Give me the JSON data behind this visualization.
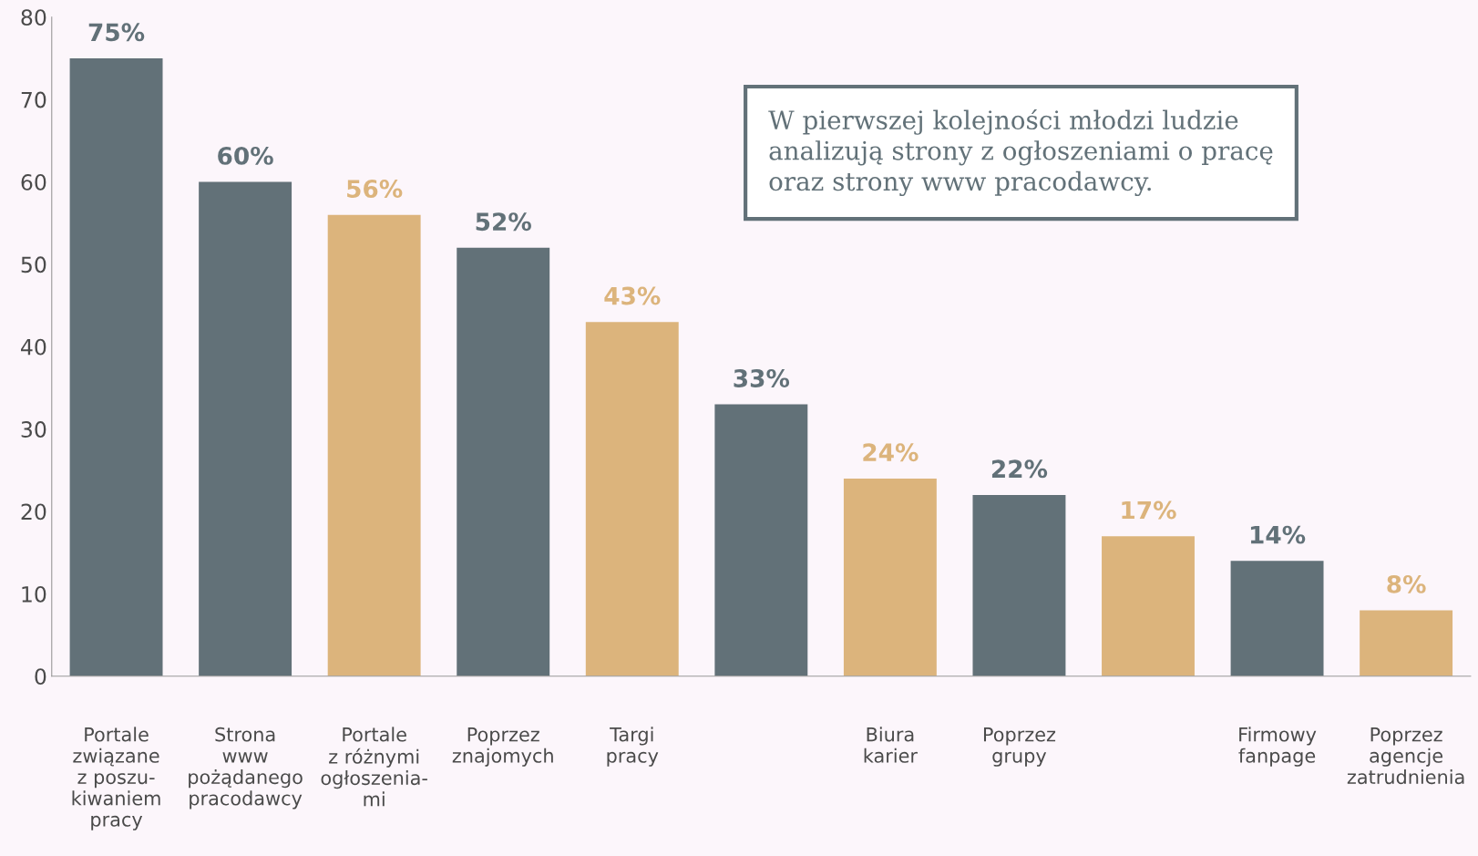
{
  "chart_data": {
    "type": "bar",
    "categories": [
      "Portale\nzwiązane\nz poszu-\nkiwaniem\npracy",
      "Strona\nwww\npożądanego\npracodawcy",
      "Portale\nz różnymi\nogłoszenia-\nmi",
      "Poprzez\nznajomych",
      "Targi\npracy",
      null,
      "Biura\nkarier",
      "Poprzez\ngrupy",
      null,
      "Firmowy\nfanpage",
      "Poprzez\nagencje\nzatrudnienia"
    ],
    "values": [
      75,
      60,
      56,
      52,
      43,
      33,
      24,
      22,
      17,
      14,
      8
    ],
    "colors": [
      "#627178",
      "#627178",
      "#dcb47c",
      "#627178",
      "#dcb47c",
      "#627178",
      "#dcb47c",
      "#627178",
      "#dcb47c",
      "#627178",
      "#dcb47c"
    ],
    "value_labels": [
      "75%",
      "60%",
      "56%",
      "52%",
      "43%",
      "33%",
      "24%",
      "22%",
      "17%",
      "14%",
      "8%"
    ],
    "ylim": [
      0,
      80
    ],
    "yticks": [
      0,
      10,
      20,
      30,
      40,
      50,
      60,
      70,
      80
    ],
    "grid": false,
    "legend": false,
    "annotations": [
      "W pierwszej kolejności młodzi ludzie\nanalizują strony z ogłoszeniami o pracę\noraz strony www pracodawcy."
    ]
  }
}
